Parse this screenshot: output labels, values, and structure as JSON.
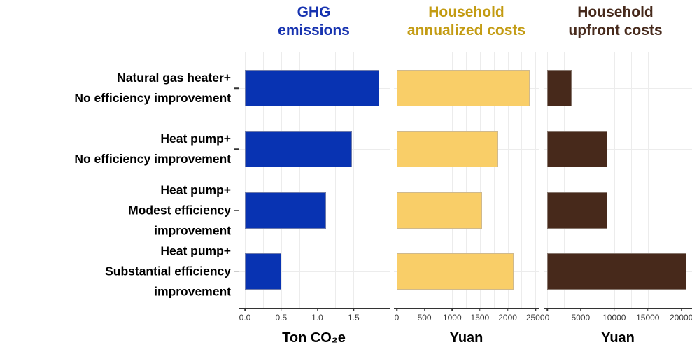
{
  "figure": {
    "background_color": "#ffffff",
    "axis_color": "#333333",
    "gridline_color": "#ECECEC",
    "text_color": "#000000"
  },
  "chart_data": {
    "type": "bar",
    "orientation": "horizontal",
    "grid": true,
    "legend": false,
    "categories": [
      [
        "Natural gas heater+",
        "No efficiency improvement"
      ],
      [
        "Heat pump+",
        "No efficiency improvement"
      ],
      [
        "Heat pump+",
        "Modest efficiency",
        "improvement"
      ],
      [
        "Heat pump+",
        "Substantial efficiency",
        "improvement"
      ]
    ],
    "row_center_fractions": [
      0.1429,
      0.381,
      0.619,
      0.8571
    ],
    "panels": [
      {
        "title_lines": [
          "GHG",
          "emissions"
        ],
        "title_color": "#1733B0",
        "bar_color": "#0833B2",
        "xlabel": "Ton CO₂e",
        "values": [
          1.85,
          1.48,
          1.12,
          0.5
        ],
        "xmax": 2.0,
        "tick_values": [
          0,
          0.5,
          1.0,
          1.5
        ],
        "tick_labels": [
          "0.0",
          "0.5",
          "1.0",
          "1.5"
        ],
        "minor_grid_step": 0.25
      },
      {
        "title_lines": [
          "Household",
          "annualized costs"
        ],
        "title_color": "#C39B12",
        "bar_color": "#F9CE68",
        "xlabel": "Yuan",
        "values": [
          2400,
          1830,
          1540,
          2100
        ],
        "xmax": 2560,
        "tick_values": [
          0,
          500,
          1000,
          1500,
          2000,
          2500
        ],
        "tick_labels": [
          "0",
          "500",
          "1000",
          "1500",
          "2000",
          "2500"
        ],
        "minor_grid_step": 250
      },
      {
        "title_lines": [
          "Household",
          "upfront costs"
        ],
        "title_color": "#472A1C",
        "bar_color": "#47291B",
        "xlabel": "Yuan",
        "values": [
          3600,
          9000,
          9000,
          20800
        ],
        "xmax": 21600,
        "tick_values": [
          0,
          5000,
          10000,
          15000,
          20000
        ],
        "tick_labels": [
          "0",
          "5000",
          "10000",
          "15000",
          "20000"
        ],
        "minor_grid_step": 2500
      }
    ]
  }
}
